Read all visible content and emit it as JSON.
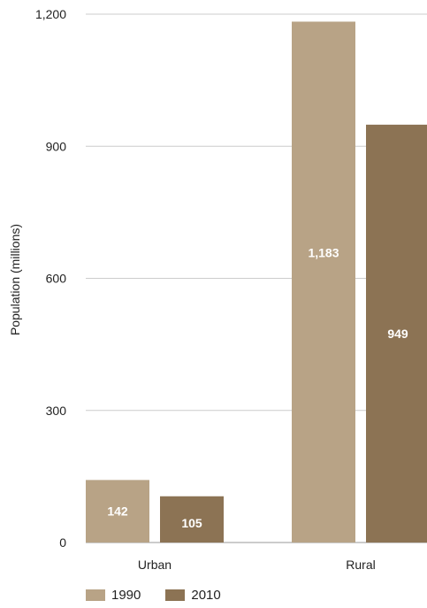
{
  "chart_data": {
    "type": "bar",
    "categories": [
      "Urban",
      "Rural"
    ],
    "series": [
      {
        "name": "1990",
        "values": [
          142,
          1183
        ],
        "labels": [
          "142",
          "1,183"
        ],
        "color": "#b8a386"
      },
      {
        "name": "2010",
        "values": [
          105,
          949
        ],
        "labels": [
          "105",
          "949"
        ],
        "color": "#8c7354"
      }
    ],
    "title": "",
    "xlabel": "",
    "ylabel": "Population (millions)",
    "ylim": [
      0,
      1200
    ],
    "yticks": [
      0,
      300,
      600,
      900,
      1200
    ],
    "ytick_labels": [
      "0",
      "300",
      "600",
      "900",
      "1,200"
    ],
    "grid": true,
    "legend_position": "bottom-left",
    "colors": {
      "grid": "#cccccc",
      "axis": "#999999"
    }
  }
}
